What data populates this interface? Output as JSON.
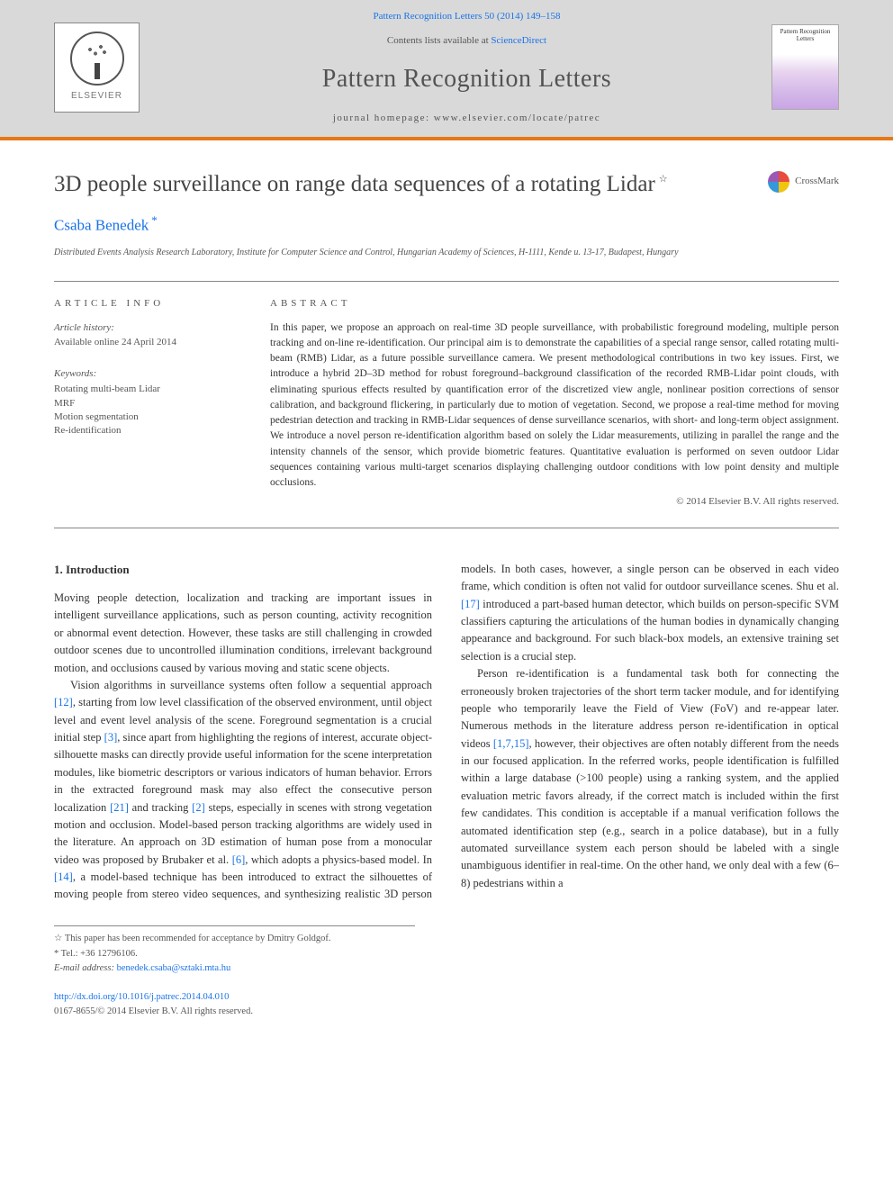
{
  "header": {
    "journal_ref": "Pattern Recognition Letters 50 (2014) 149–158",
    "contents_prefix": "Contents lists available at ",
    "contents_link": "ScienceDirect",
    "journal_title": "Pattern Recognition Letters",
    "homepage_prefix": "journal homepage: ",
    "homepage_url": "www.elsevier.com/locate/patrec",
    "publisher": "ELSEVIER",
    "cover_title": "Pattern Recognition Letters",
    "colors": {
      "header_bg": "#d9d9d9",
      "accent_bar": "#e67817",
      "link": "#1a73e8",
      "text": "#333333",
      "muted": "#555555"
    }
  },
  "crossmark": {
    "label": "CrossMark"
  },
  "article": {
    "title": "3D people surveillance on range data sequences of a rotating Lidar",
    "title_note_symbol": "☆",
    "author": "Csaba Benedek",
    "author_marker": "*",
    "affiliation": "Distributed Events Analysis Research Laboratory, Institute for Computer Science and Control, Hungarian Academy of Sciences, H-1111, Kende u. 13-17, Budapest, Hungary"
  },
  "info": {
    "heading": "ARTICLE INFO",
    "history_label": "Article history:",
    "history_text": "Available online 24 April 2014",
    "keywords_label": "Keywords:",
    "keywords": [
      "Rotating multi-beam Lidar",
      "MRF",
      "Motion segmentation",
      "Re-identification"
    ]
  },
  "abstract": {
    "heading": "ABSTRACT",
    "text": "In this paper, we propose an approach on real-time 3D people surveillance, with probabilistic foreground modeling, multiple person tracking and on-line re-identification. Our principal aim is to demonstrate the capabilities of a special range sensor, called rotating multi-beam (RMB) Lidar, as a future possible surveillance camera. We present methodological contributions in two key issues. First, we introduce a hybrid 2D–3D method for robust foreground–background classification of the recorded RMB-Lidar point clouds, with eliminating spurious effects resulted by quantification error of the discretized view angle, nonlinear position corrections of sensor calibration, and background flickering, in particularly due to motion of vegetation. Second, we propose a real-time method for moving pedestrian detection and tracking in RMB-Lidar sequences of dense surveillance scenarios, with short- and long-term object assignment. We introduce a novel person re-identification algorithm based on solely the Lidar measurements, utilizing in parallel the range and the intensity channels of the sensor, which provide biometric features. Quantitative evaluation is performed on seven outdoor Lidar sequences containing various multi-target scenarios displaying challenging outdoor conditions with low point density and multiple occlusions.",
    "copyright": "© 2014 Elsevier B.V. All rights reserved."
  },
  "body": {
    "section_number": "1.",
    "section_title": "Introduction",
    "p1": "Moving people detection, localization and tracking are important issues in intelligent surveillance applications, such as person counting, activity recognition or abnormal event detection. However, these tasks are still challenging in crowded outdoor scenes due to uncontrolled illumination conditions, irrelevant background motion, and occlusions caused by various moving and static scene objects.",
    "p2a": "Vision algorithms in surveillance systems often follow a sequential approach ",
    "c12": "[12]",
    "p2b": ", starting from low level classification of the observed environment, until object level and event level analysis of the scene. Foreground segmentation is a crucial initial step ",
    "c3": "[3]",
    "p2c": ", since apart from highlighting the regions of interest, accurate object-silhouette masks can directly provide useful information for the scene interpretation modules, like biometric descriptors or various indicators of human behavior. Errors in the extracted foreground mask may also effect the consecutive person localization ",
    "c21": "[21]",
    "p2d": " and tracking ",
    "c2": "[2]",
    "p2e": " steps, especially in scenes with strong vegetation motion and occlusion. Model-based person tracking algorithms are widely used in the literature. An approach on 3D estimation of human pose from a monocular video was proposed by Brubaker et al. ",
    "c6": "[6]",
    "p2f": ", which adopts a physics-based model. In ",
    "c14": "[14]",
    "p2g": ", a model-based technique has been introduced to extract the silhouettes of moving people from stereo video sequences, and synthesizing realistic 3D person models. In both cases, however, a single person can be observed in each video frame, which condition is often not valid for outdoor surveillance scenes. Shu et al. ",
    "c17": "[17]",
    "p2h": " introduced a part-based human detector, which builds on person-specific SVM classifiers capturing the articulations of the human bodies in dynamically changing appearance and background. For such black-box models, an extensive training set selection is a crucial step.",
    "p3a": "Person re-identification is a fundamental task both for connecting the erroneously broken trajectories of the short term tacker module, and for identifying people who temporarily leave the Field of View (FoV) and re-appear later. Numerous methods in the literature address person re-identification in optical videos ",
    "c1715": "[1,7,15]",
    "p3b": ", however, their objectives are often notably different from the needs in our focused application. In the referred works, people identification is fulfilled within a large database (>100 people) using a ranking system, and the applied evaluation metric favors already, if the correct match is included within the first few candidates. This condition is acceptable if a manual verification follows the automated identification step (e.g., search in a police database), but in a fully automated surveillance system each person should be labeled with a single unambiguous identifier in real-time. On the other hand, we only deal with a few (6–8) pedestrians within a"
  },
  "footnotes": {
    "note": "☆  This paper has been recommended for acceptance by Dmitry Goldgof.",
    "corr": "*  Tel.: +36 12796106.",
    "email_label": "E-mail address: ",
    "email": "benedek.csaba@sztaki.mta.hu"
  },
  "doi": {
    "url": "http://dx.doi.org/10.1016/j.patrec.2014.04.010",
    "issn_line": "0167-8655/© 2014 Elsevier B.V. All rights reserved."
  },
  "typography": {
    "title_fontsize_pt": 19,
    "author_fontsize_pt": 13,
    "body_fontsize_pt": 9.5,
    "abstract_fontsize_pt": 8.5,
    "info_fontsize_pt": 8,
    "footnote_fontsize_pt": 7.5
  }
}
